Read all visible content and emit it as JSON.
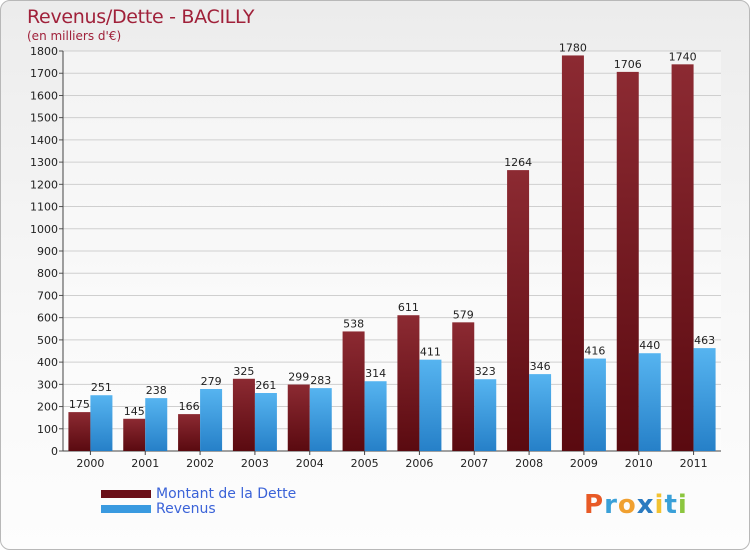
{
  "chart_data": {
    "type": "bar",
    "title": "Revenus/Dette - BACILLY",
    "subtitle": "(en milliers d'€)",
    "categories": [
      "2000",
      "2001",
      "2002",
      "2003",
      "2004",
      "2005",
      "2006",
      "2007",
      "2008",
      "2009",
      "2010",
      "2011"
    ],
    "series": [
      {
        "name": "Montant de la Dette",
        "color": "#7a1a22",
        "values": [
          175,
          145,
          166,
          325,
          299,
          538,
          611,
          579,
          1264,
          1780,
          1706,
          1740
        ]
      },
      {
        "name": "Revenus",
        "color": "#3a9ae0",
        "values": [
          251,
          238,
          279,
          261,
          283,
          314,
          411,
          323,
          346,
          416,
          440,
          463
        ]
      }
    ],
    "ylim": [
      0,
      1800
    ],
    "yticks": [
      0,
      100,
      200,
      300,
      400,
      500,
      600,
      700,
      800,
      900,
      1000,
      1100,
      1200,
      1300,
      1400,
      1500,
      1600,
      1700,
      1800
    ],
    "xlabel": "",
    "ylabel": "",
    "legend_position": "bottom-left"
  },
  "legend": {
    "debt_label": "Montant de la Dette",
    "revenue_label": "Revenus"
  },
  "logo": {
    "letters": [
      "P",
      "r",
      "o",
      "x",
      "i",
      "t",
      "i"
    ],
    "colors": [
      "#e85a26",
      "#3aa0d8",
      "#f0a030",
      "#2a7ac0",
      "#f2c230",
      "#3aa0d8",
      "#8cc63f"
    ]
  }
}
